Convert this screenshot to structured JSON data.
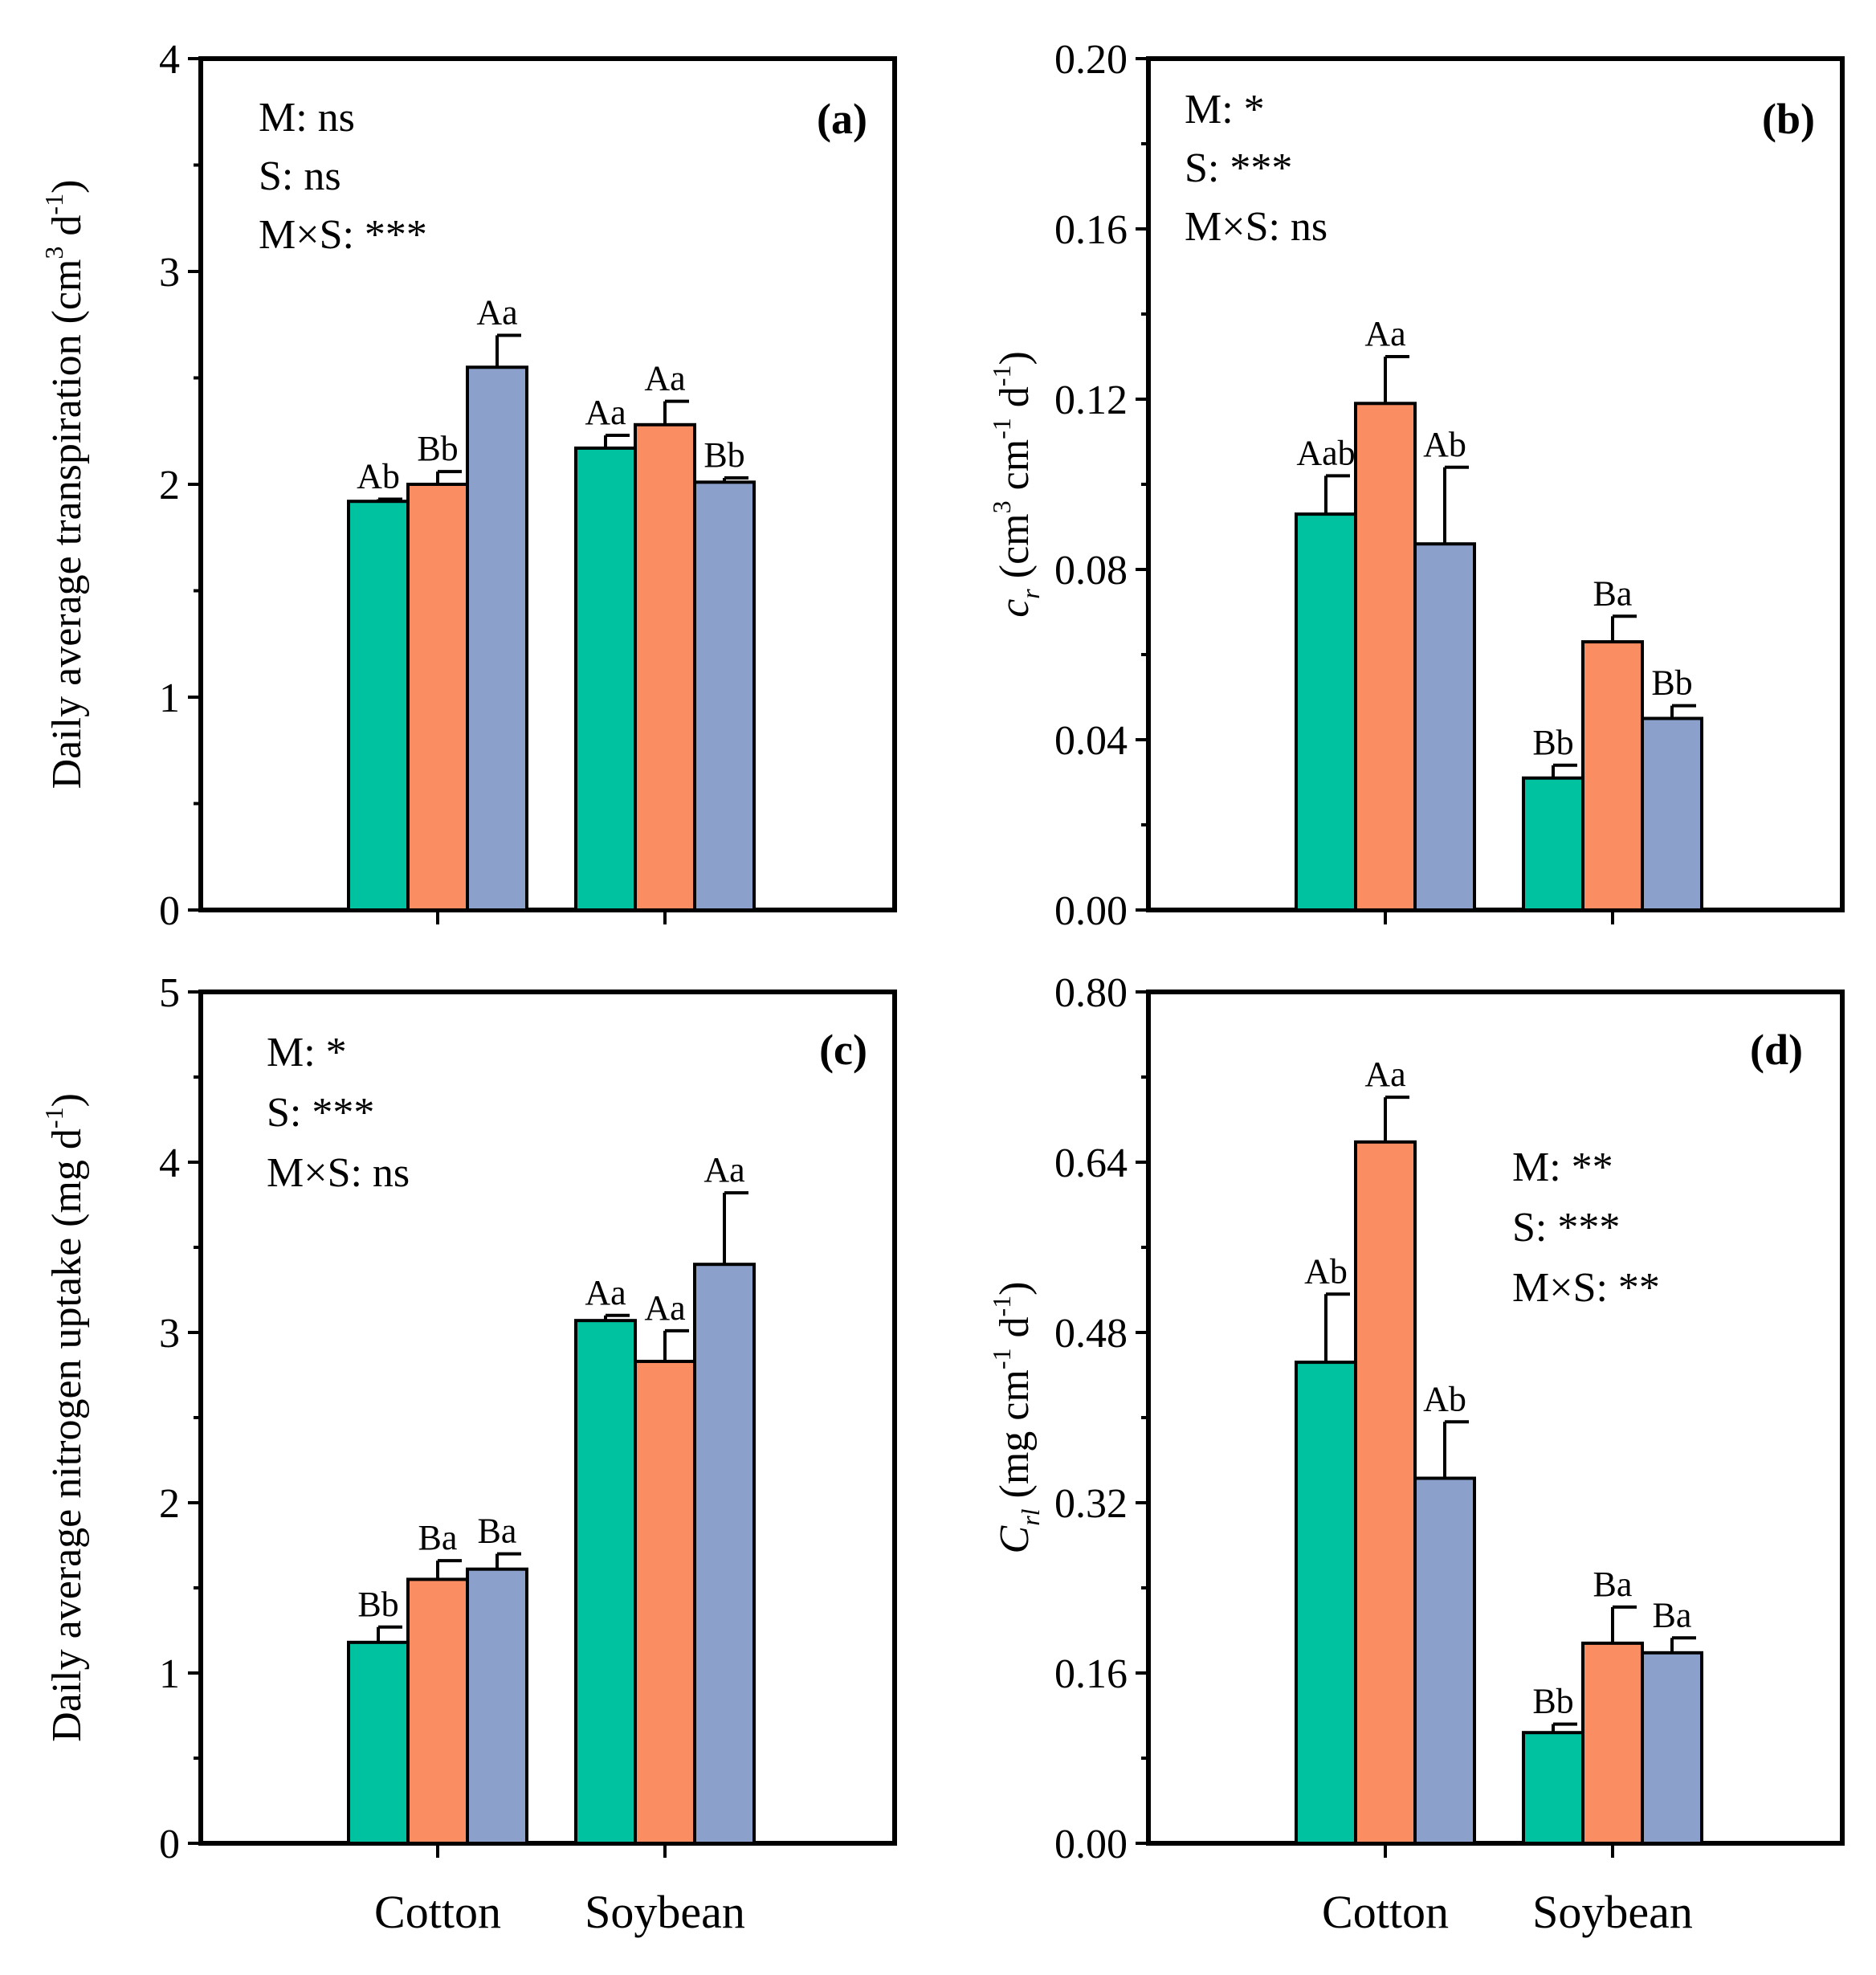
{
  "categories": [
    "Cotton",
    "Soybean"
  ],
  "colors": {
    "series1": "#00c2a0",
    "series2": "#fb8d62",
    "series3": "#8ca0cc",
    "stroke": "#000000"
  },
  "chart_data": [
    {
      "type": "bar",
      "panel": "(a)",
      "ylabel": "Daily average transpiration (cm3 d-1)",
      "ylabel_parts": {
        "main": "Daily average transpiration (cm",
        "sup1": "3",
        "mid": " d",
        "sup2": "-1",
        "end": ")"
      },
      "ylim": [
        0,
        4
      ],
      "yticks": [
        0,
        1,
        2,
        3,
        4
      ],
      "ytick_labels": [
        "0",
        "1",
        "2",
        "3",
        "4"
      ],
      "categories": [
        "Cotton",
        "Soybean"
      ],
      "series": [
        {
          "name": "series1",
          "values": [
            1.92,
            2.17
          ],
          "errors": [
            0.01,
            0.06
          ],
          "labels": [
            "Ab",
            "Aa"
          ]
        },
        {
          "name": "series2",
          "values": [
            2.0,
            2.28
          ],
          "errors": [
            0.06,
            0.11
          ],
          "labels": [
            "Bb",
            "Aa"
          ]
        },
        {
          "name": "series3",
          "values": [
            2.55,
            2.01
          ],
          "errors": [
            0.15,
            0.02
          ],
          "labels": [
            "Aa",
            "Bb"
          ]
        }
      ],
      "stats": [
        "M: ns",
        "S: ns",
        "M×S: ***"
      ],
      "stats_position": "top-left"
    },
    {
      "type": "bar",
      "panel": "(b)",
      "ylabel": "cr (cm3 cm-1 d-1)",
      "ylabel_parts": {
        "var": "c",
        "sub": "r",
        "rest": " (cm",
        "sup1": "3",
        "mid1": " cm",
        "sup2": "-1",
        "mid2": " d",
        "sup3": "-1",
        "end": ")"
      },
      "ylim": [
        0,
        0.2
      ],
      "yticks": [
        0,
        0.04,
        0.08,
        0.12,
        0.16,
        0.2
      ],
      "ytick_labels": [
        "0.00",
        "0.04",
        "0.08",
        "0.12",
        "0.16",
        "0.20"
      ],
      "categories": [
        "Cotton",
        "Soybean"
      ],
      "series": [
        {
          "name": "series1",
          "values": [
            0.093,
            0.031
          ],
          "errors": [
            0.009,
            0.003
          ],
          "labels": [
            "Aab",
            "Bb"
          ]
        },
        {
          "name": "series2",
          "values": [
            0.119,
            0.063
          ],
          "errors": [
            0.011,
            0.006
          ],
          "labels": [
            "Aa",
            "Ba"
          ]
        },
        {
          "name": "series3",
          "values": [
            0.086,
            0.045
          ],
          "errors": [
            0.018,
            0.003
          ],
          "labels": [
            "Ab",
            "Bb"
          ]
        }
      ],
      "stats": [
        "M: *",
        "S: ***",
        "M×S: ns"
      ],
      "stats_position": "top-left"
    },
    {
      "type": "bar",
      "panel": "(c)",
      "ylabel": "Daily average nitrogen uptake (mg d-1)",
      "ylabel_parts": {
        "main": "Daily average nitrogen uptake (mg d",
        "sup1": "-1",
        "end": ")"
      },
      "ylim": [
        0,
        5
      ],
      "yticks": [
        0,
        1,
        2,
        3,
        4,
        5
      ],
      "ytick_labels": [
        "0",
        "1",
        "2",
        "3",
        "4",
        "5"
      ],
      "categories": [
        "Cotton",
        "Soybean"
      ],
      "series": [
        {
          "name": "series1",
          "values": [
            1.18,
            3.07
          ],
          "errors": [
            0.09,
            0.03
          ],
          "labels": [
            "Bb",
            "Aa"
          ]
        },
        {
          "name": "series2",
          "values": [
            1.55,
            2.83
          ],
          "errors": [
            0.11,
            0.18
          ],
          "labels": [
            "Ba",
            "Aa"
          ]
        },
        {
          "name": "series3",
          "values": [
            1.61,
            3.4
          ],
          "errors": [
            0.09,
            0.42
          ],
          "labels": [
            "Ba",
            "Aa"
          ]
        }
      ],
      "stats": [
        "M: *",
        "S: ***",
        "M×S: ns"
      ],
      "stats_position": "top-left"
    },
    {
      "type": "bar",
      "panel": "(d)",
      "ylabel": "Crl (mg cm-1 d-1)",
      "ylabel_parts": {
        "var": "C",
        "sub": "rl",
        "rest": " (mg cm",
        "sup1": "-1",
        "mid": " d",
        "sup2": "-1",
        "end": ")"
      },
      "ylim": [
        0,
        0.8
      ],
      "yticks": [
        0,
        0.16,
        0.32,
        0.48,
        0.64,
        0.8
      ],
      "ytick_labels": [
        "0.00",
        "0.16",
        "0.32",
        "0.48",
        "0.64",
        "0.80"
      ],
      "categories": [
        "Cotton",
        "Soybean"
      ],
      "series": [
        {
          "name": "series1",
          "values": [
            0.452,
            0.104
          ],
          "errors": [
            0.064,
            0.008
          ],
          "labels": [
            "Ab",
            "Bb"
          ]
        },
        {
          "name": "series2",
          "values": [
            0.659,
            0.188
          ],
          "errors": [
            0.042,
            0.034
          ],
          "labels": [
            "Aa",
            "Ba"
          ]
        },
        {
          "name": "series3",
          "values": [
            0.343,
            0.179
          ],
          "errors": [
            0.053,
            0.014
          ],
          "labels": [
            "Ab",
            "Ba"
          ]
        }
      ],
      "stats": [
        "M: **",
        "S: ***",
        "M×S: **"
      ],
      "stats_position": "right-middle"
    }
  ]
}
